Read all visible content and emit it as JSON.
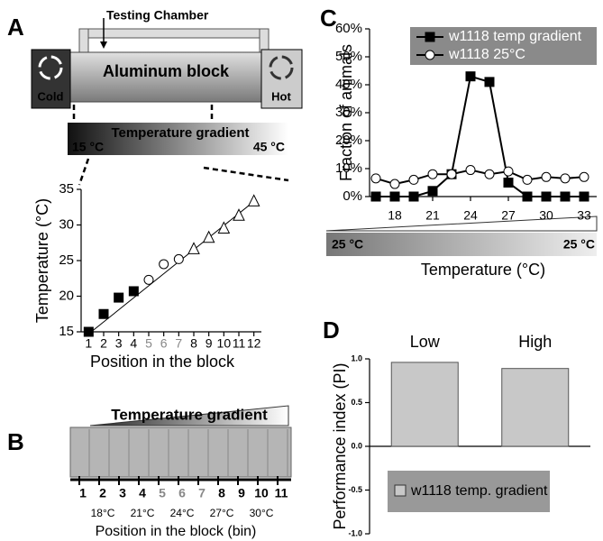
{
  "figure": {
    "panel_letters": [
      "A",
      "B",
      "C",
      "D"
    ],
    "panel_a": {
      "chamber": "Testing Chamber",
      "block": "Aluminum block",
      "cold": "Cold",
      "hot": "Hot",
      "gradient": "Temperature gradient",
      "low": "15 °C",
      "high": "45 °C"
    },
    "panel_b": {
      "gradient": "Temperature gradient",
      "bins": [
        "1",
        "2",
        "3",
        "4",
        "5",
        "6",
        "7",
        "8",
        "9",
        "10",
        "11"
      ],
      "bin_temps": [
        "18°C",
        "21°C",
        "24°C",
        "27°C",
        "30°C"
      ],
      "x_label": "Position in the block (bin)"
    },
    "panel_c": {
      "left": "25 °C",
      "right": "25 °C"
    }
  },
  "chart_data": [
    {
      "type": "scatter",
      "x_label": "Position in the block",
      "y_label": "Temperature (°C)",
      "xlim": [
        0.5,
        12.5
      ],
      "ylim": [
        15,
        35
      ],
      "xticks": [
        1,
        2,
        3,
        4,
        5,
        6,
        7,
        8,
        9,
        10,
        11,
        12
      ],
      "yticks": [
        15,
        20,
        25,
        30,
        35
      ],
      "series": [
        {
          "marker": "square",
          "color": "#000000",
          "x": [
            1,
            2,
            3,
            4
          ],
          "values": [
            15,
            17.5,
            19.8,
            20.7
          ]
        },
        {
          "marker": "circle",
          "color": "#ffffff",
          "x": [
            5,
            6,
            7
          ],
          "values": [
            22.3,
            24.5,
            25.2
          ]
        },
        {
          "marker": "triangle",
          "color": "#ffffff",
          "x": [
            8,
            9,
            10,
            11,
            12
          ],
          "values": [
            26.6,
            28.2,
            29.5,
            31.3,
            33.3
          ]
        }
      ],
      "trendline": {
        "x": [
          1,
          12
        ],
        "y": [
          14.7,
          33.3
        ]
      }
    },
    {
      "type": "line",
      "x_label": "Temperature (°C)",
      "y_label": "Fraction of animals",
      "xlim": [
        16,
        34
      ],
      "ylim": [
        0,
        60
      ],
      "xticks": [
        18,
        21,
        24,
        27,
        30,
        33
      ],
      "yticks": [
        {
          "value": 0,
          "label": "0%"
        },
        {
          "value": 10,
          "label": "10%"
        },
        {
          "value": 20,
          "label": "20%"
        },
        {
          "value": 30,
          "label": "30%"
        },
        {
          "value": 40,
          "label": "40%"
        },
        {
          "value": 50,
          "label": "50%"
        },
        {
          "value": 60,
          "label": "60%"
        }
      ],
      "x": [
        16.5,
        18,
        19.5,
        21,
        22.5,
        24,
        25.5,
        27,
        28.5,
        30,
        31.5,
        33
      ],
      "series": [
        {
          "name": "w1118 temp gradient",
          "marker": "square",
          "color": "#000000",
          "values": [
            0,
            0,
            0,
            2,
            8,
            43,
            41,
            5,
            0,
            0,
            0,
            0
          ]
        },
        {
          "name": "w1118 25°C",
          "marker": "circle",
          "color": "#ffffff",
          "values": [
            6.5,
            4.5,
            6,
            8,
            8,
            9.5,
            8,
            9,
            6,
            7,
            6.5,
            7
          ]
        }
      ]
    },
    {
      "type": "bar",
      "y_label": "Performance index (PI)",
      "categories": [
        "Low",
        "High"
      ],
      "values": [
        0.96,
        0.89
      ],
      "color": "#c8c8c8",
      "legend": "w1118 temp. gradient",
      "ylim": [
        -1,
        1
      ],
      "yticks": [
        {
          "value": -1,
          "label": "-1.0"
        },
        {
          "value": -0.5,
          "label": "-0.5"
        },
        {
          "value": 0,
          "label": "0.0"
        },
        {
          "value": 0.5,
          "label": "0.5"
        },
        {
          "value": 1,
          "label": "1.0"
        }
      ]
    }
  ]
}
